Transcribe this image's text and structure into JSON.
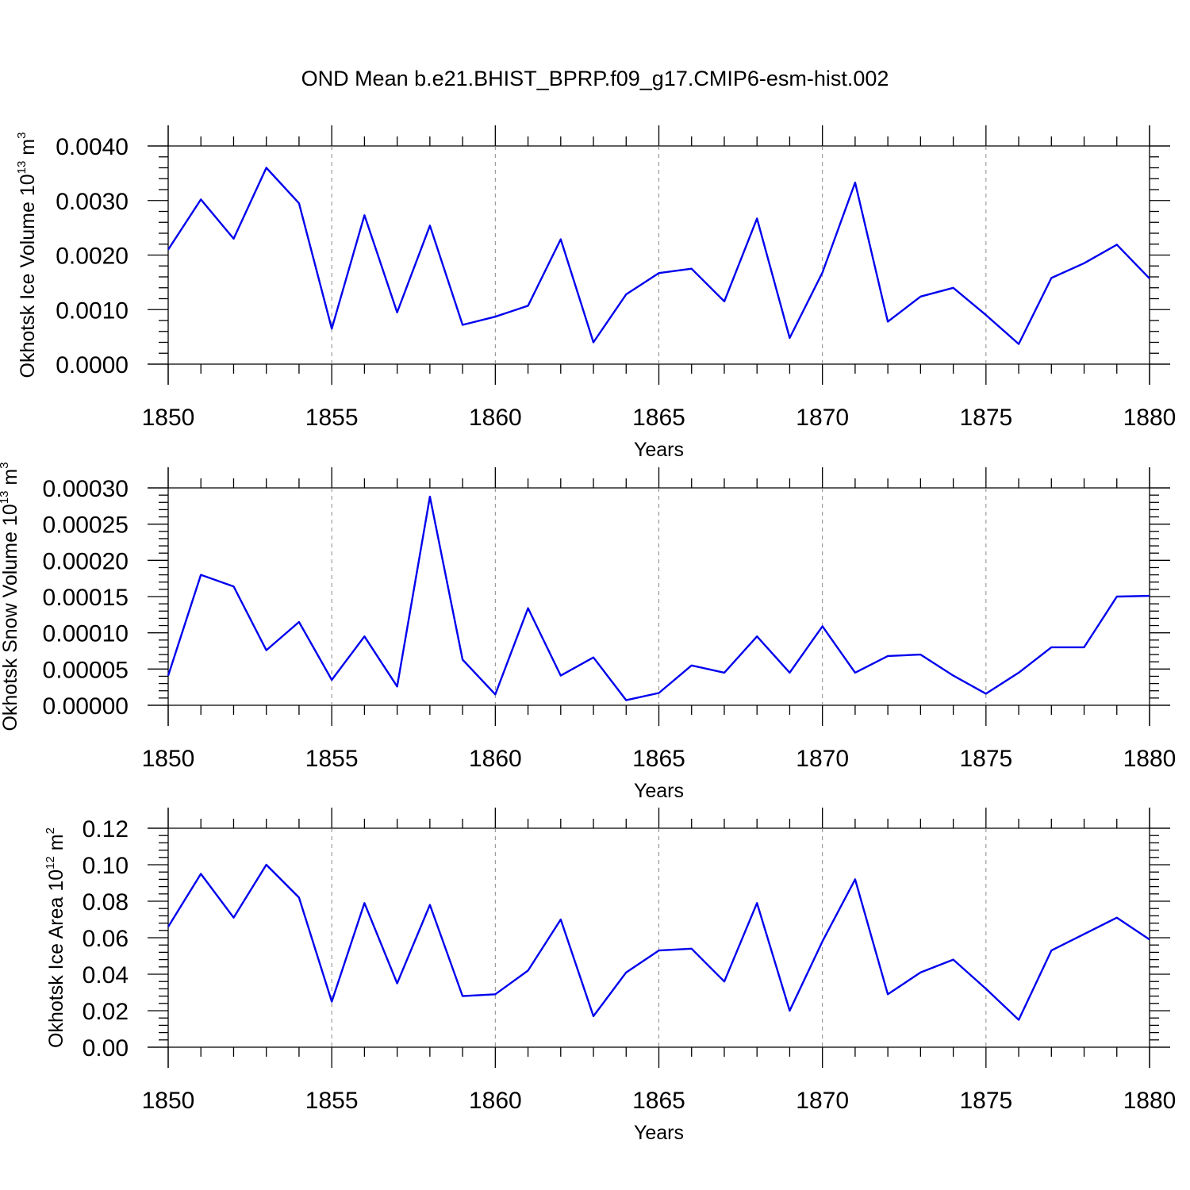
{
  "title": "OND Mean b.e21.BHIST_BPRP.f09_g17.CMIP6-esm-hist.002",
  "colors": {
    "series": "#0000ee",
    "grid": "#888888",
    "axis": "#000000"
  },
  "chart_data": [
    {
      "type": "line",
      "xlabel": "Years",
      "ylabel": {
        "text": "Okhotsk Ice Volume 10",
        "sup": "13",
        "unit": " m",
        "unit_sup": "3"
      },
      "xlim": [
        1850,
        1880
      ],
      "ylim": [
        0,
        0.004
      ],
      "xticks": [
        "1850",
        "1855",
        "1860",
        "1865",
        "1870",
        "1875",
        "1880"
      ],
      "yticks": [
        "0.0000",
        "0.0010",
        "0.0020",
        "0.0030",
        "0.0040"
      ],
      "grid": "x-major-dashed",
      "x": [
        1850,
        1851,
        1852,
        1853,
        1854,
        1855,
        1856,
        1857,
        1858,
        1859,
        1860,
        1861,
        1862,
        1863,
        1864,
        1865,
        1866,
        1867,
        1868,
        1869,
        1870,
        1871,
        1872,
        1873,
        1874,
        1875,
        1876,
        1877,
        1878,
        1879,
        1880
      ],
      "series": [
        {
          "values": [
            0.0021,
            0.00302,
            0.0023,
            0.0036,
            0.00295,
            0.00065,
            0.00273,
            0.00095,
            0.00254,
            0.00072,
            0.00087,
            0.00107,
            0.00229,
            0.0004,
            0.00128,
            0.00167,
            0.00175,
            0.00115,
            0.00267,
            0.00048,
            0.00168,
            0.00333,
            0.00078,
            0.00124,
            0.0014,
            0.0009,
            0.00037,
            0.00158,
            0.00185,
            0.00219,
            0.00157
          ]
        }
      ]
    },
    {
      "type": "line",
      "xlabel": "Years",
      "ylabel": {
        "text": "Okhotsk Snow Volume 10",
        "sup": "13",
        "unit": " m",
        "unit_sup": "3"
      },
      "xlim": [
        1850,
        1880
      ],
      "ylim": [
        0,
        0.0003
      ],
      "xticks": [
        "1850",
        "1855",
        "1860",
        "1865",
        "1870",
        "1875",
        "1880"
      ],
      "yticks": [
        "0.00000",
        "0.00005",
        "0.00010",
        "0.00015",
        "0.00020",
        "0.00025",
        "0.00030"
      ],
      "grid": "x-major-dashed",
      "x": [
        1850,
        1851,
        1852,
        1853,
        1854,
        1855,
        1856,
        1857,
        1858,
        1859,
        1860,
        1861,
        1862,
        1863,
        1864,
        1865,
        1866,
        1867,
        1868,
        1869,
        1870,
        1871,
        1872,
        1873,
        1874,
        1875,
        1876,
        1877,
        1878,
        1879,
        1880
      ],
      "series": [
        {
          "values": [
            4.1e-05,
            0.00018,
            0.000164,
            7.6e-05,
            0.000115,
            3.5e-05,
            9.5e-05,
            2.6e-05,
            0.000288,
            6.3e-05,
            1.5e-05,
            0.000134,
            4.1e-05,
            6.6e-05,
            7e-06,
            1.7e-05,
            5.5e-05,
            4.5e-05,
            9.5e-05,
            4.5e-05,
            0.000109,
            4.5e-05,
            6.8e-05,
            7e-05,
            4.1e-05,
            1.6e-05,
            4.5e-05,
            8e-05,
            8e-05,
            0.00015,
            0.000151
          ]
        }
      ]
    },
    {
      "type": "line",
      "xlabel": "Years",
      "ylabel": {
        "text": "Okhotsk Ice Area 10",
        "sup": "12",
        "unit": " m",
        "unit_sup": "2"
      },
      "xlim": [
        1850,
        1880
      ],
      "ylim": [
        0,
        0.12
      ],
      "xticks": [
        "1850",
        "1855",
        "1860",
        "1865",
        "1870",
        "1875",
        "1880"
      ],
      "yticks": [
        "0.00",
        "0.02",
        "0.04",
        "0.06",
        "0.08",
        "0.10",
        "0.12"
      ],
      "grid": "x-major-dashed",
      "x": [
        1850,
        1851,
        1852,
        1853,
        1854,
        1855,
        1856,
        1857,
        1858,
        1859,
        1860,
        1861,
        1862,
        1863,
        1864,
        1865,
        1866,
        1867,
        1868,
        1869,
        1870,
        1871,
        1872,
        1873,
        1874,
        1875,
        1876,
        1877,
        1878,
        1879,
        1880
      ],
      "series": [
        {
          "values": [
            0.066,
            0.095,
            0.071,
            0.1,
            0.082,
            0.025,
            0.079,
            0.035,
            0.078,
            0.028,
            0.029,
            0.042,
            0.07,
            0.017,
            0.041,
            0.053,
            0.054,
            0.036,
            0.079,
            0.02,
            0.058,
            0.092,
            0.029,
            0.041,
            0.048,
            0.032,
            0.015,
            0.053,
            0.062,
            0.071,
            0.059
          ]
        }
      ]
    }
  ]
}
